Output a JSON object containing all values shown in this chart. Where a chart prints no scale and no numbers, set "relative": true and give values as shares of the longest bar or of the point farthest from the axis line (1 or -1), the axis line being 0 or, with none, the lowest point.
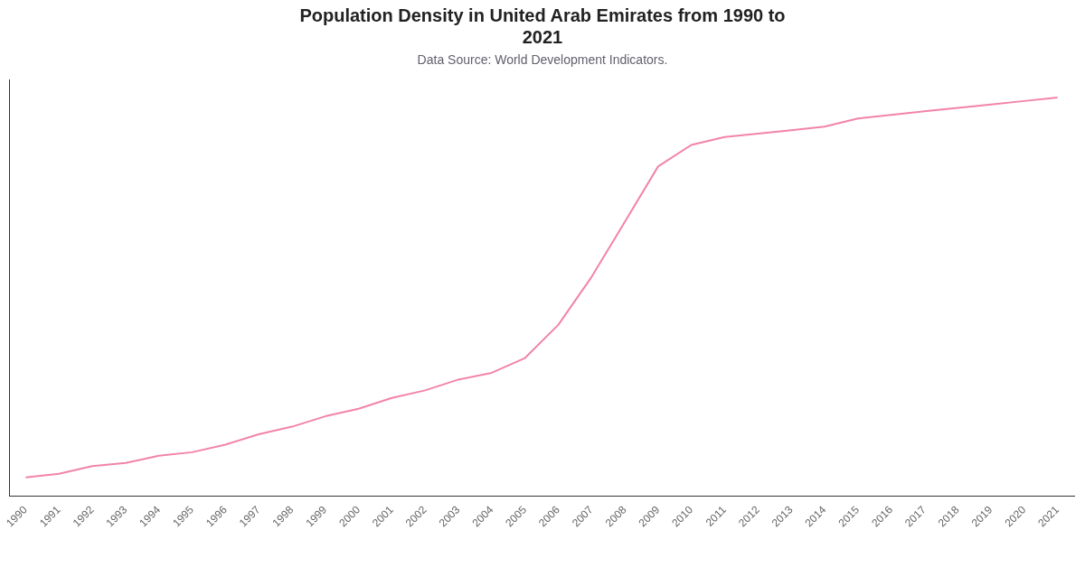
{
  "chart_data": {
    "type": "line",
    "title": "Population Density in United Arab Emirates from 1990 to 2021",
    "subtitle": "Data Source: World Development Indicators.",
    "relative": true,
    "categories": [
      "1990",
      "1991",
      "1992",
      "1993",
      "1994",
      "1995",
      "1996",
      "1997",
      "1998",
      "1999",
      "2000",
      "2001",
      "2002",
      "2003",
      "2004",
      "2005",
      "2006",
      "2007",
      "2008",
      "2009",
      "2010",
      "2011",
      "2012",
      "2013",
      "2014",
      "2015",
      "2016",
      "2017",
      "2018",
      "2019",
      "2020",
      "2021"
    ],
    "series": [
      {
        "color": "#f283ab",
        "values": [
          0.048,
          0.057,
          0.076,
          0.084,
          0.102,
          0.111,
          0.13,
          0.156,
          0.175,
          0.201,
          0.22,
          0.247,
          0.266,
          0.293,
          0.31,
          0.347,
          0.43,
          0.55,
          0.688,
          0.827,
          0.881,
          0.901,
          0.909,
          0.918,
          0.927,
          0.947,
          0.956,
          0.965,
          0.974,
          0.982,
          0.991,
          1
        ]
      }
    ]
  }
}
